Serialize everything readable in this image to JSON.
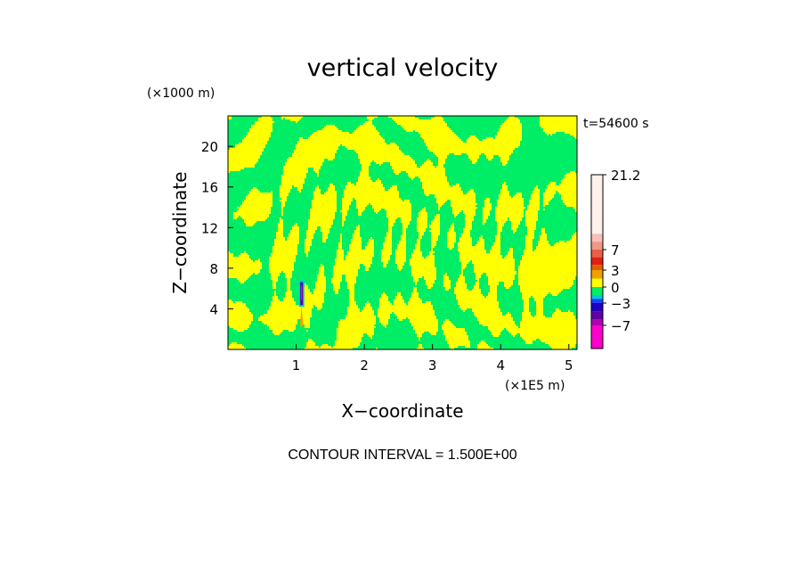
{
  "chart_data": {
    "type": "heatmap",
    "title": "vertical velocity",
    "xlabel": "X−coordinate",
    "ylabel": "Z−coordinate",
    "x_unit_label": "(×1E5 m)",
    "y_unit_label": "(×1000 m)",
    "time_label": "t=54600 s",
    "footer": "CONTOUR INTERVAL = 1.500E+00",
    "xlim": [
      0,
      5.12
    ],
    "ylim": [
      0,
      23
    ],
    "x_ticks": [
      "1",
      "2",
      "3",
      "4",
      "5"
    ],
    "x_tick_values": [
      1,
      2,
      3,
      4,
      5
    ],
    "y_ticks": [
      "4",
      "8",
      "12",
      "16",
      "20"
    ],
    "y_tick_values": [
      4,
      8,
      12,
      16,
      20
    ],
    "dominant_colors": {
      "positive_small": "#ffff00",
      "negative_small": "#00ee66"
    },
    "colorbar": {
      "labels": [
        "21.2",
        "7",
        "3",
        "0",
        "−3",
        "−7"
      ],
      "label_values": [
        21.2,
        7,
        3,
        0,
        -3,
        -7
      ],
      "bands": [
        {
          "from": 10,
          "to": 21.2,
          "color": "#fff0ec"
        },
        {
          "from": 8.5,
          "to": 10,
          "color": "#f8c0b8"
        },
        {
          "from": 7,
          "to": 8.5,
          "color": "#f09888"
        },
        {
          "from": 5.5,
          "to": 7,
          "color": "#e86048"
        },
        {
          "from": 4,
          "to": 5.5,
          "color": "#e02010"
        },
        {
          "from": 3,
          "to": 4,
          "color": "#e06000"
        },
        {
          "from": 1.5,
          "to": 3,
          "color": "#f0a000"
        },
        {
          "from": 0,
          "to": 1.5,
          "color": "#ffff00"
        },
        {
          "from": -1.5,
          "to": 0,
          "color": "#00ee66"
        },
        {
          "from": -2.2,
          "to": -1.5,
          "color": "#00c8e0"
        },
        {
          "from": -3,
          "to": -2.2,
          "color": "#2040ff"
        },
        {
          "from": -4.5,
          "to": -3,
          "color": "#2000c0"
        },
        {
          "from": -6,
          "to": -4.5,
          "color": "#6000a0"
        },
        {
          "from": -7,
          "to": -6,
          "color": "#b000b0"
        },
        {
          "from": -10,
          "to": -7,
          "color": "#ff00cc"
        }
      ]
    },
    "updraft_feature": {
      "x": 1.08,
      "z_bottom": 4.2,
      "z_top": 6.8
    }
  }
}
